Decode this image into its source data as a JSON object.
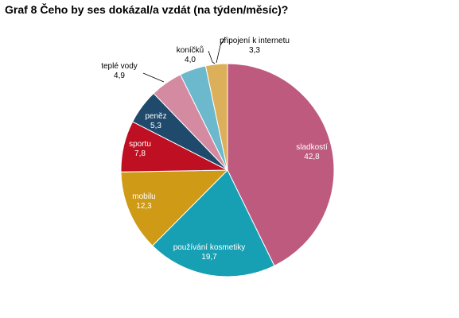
{
  "chart_data": {
    "type": "pie",
    "title": "Graf 8 Čeho by ses dokázal/a vzdát (na týden/měsíc)?",
    "categories": [
      "sladkostí",
      "používání kosmetiky",
      "mobilu",
      "sportu",
      "peněz",
      "teplé vody",
      "koníčků",
      "připojení k internetu"
    ],
    "values": [
      42.8,
      19.7,
      12.3,
      7.8,
      5.3,
      4.9,
      4.0,
      3.3
    ],
    "value_labels": [
      "42,8",
      "19,7",
      "12,3",
      "7,8",
      "5,3",
      "4,9",
      "4,0",
      "3,3"
    ],
    "colors": [
      "#bd5a7e",
      "#17a0b4",
      "#cf9a16",
      "#bf0f22",
      "#1f4a6b",
      "#d48aa0",
      "#6cb8cc",
      "#dcb05a"
    ],
    "label_colors": [
      "#ffffff",
      "#ffffff",
      "#ffffff",
      "#ffffff",
      "#ffffff",
      "#000000",
      "#000000",
      "#000000"
    ],
    "start": "12 o'clock",
    "direction": "clockwise",
    "legend": "none"
  }
}
